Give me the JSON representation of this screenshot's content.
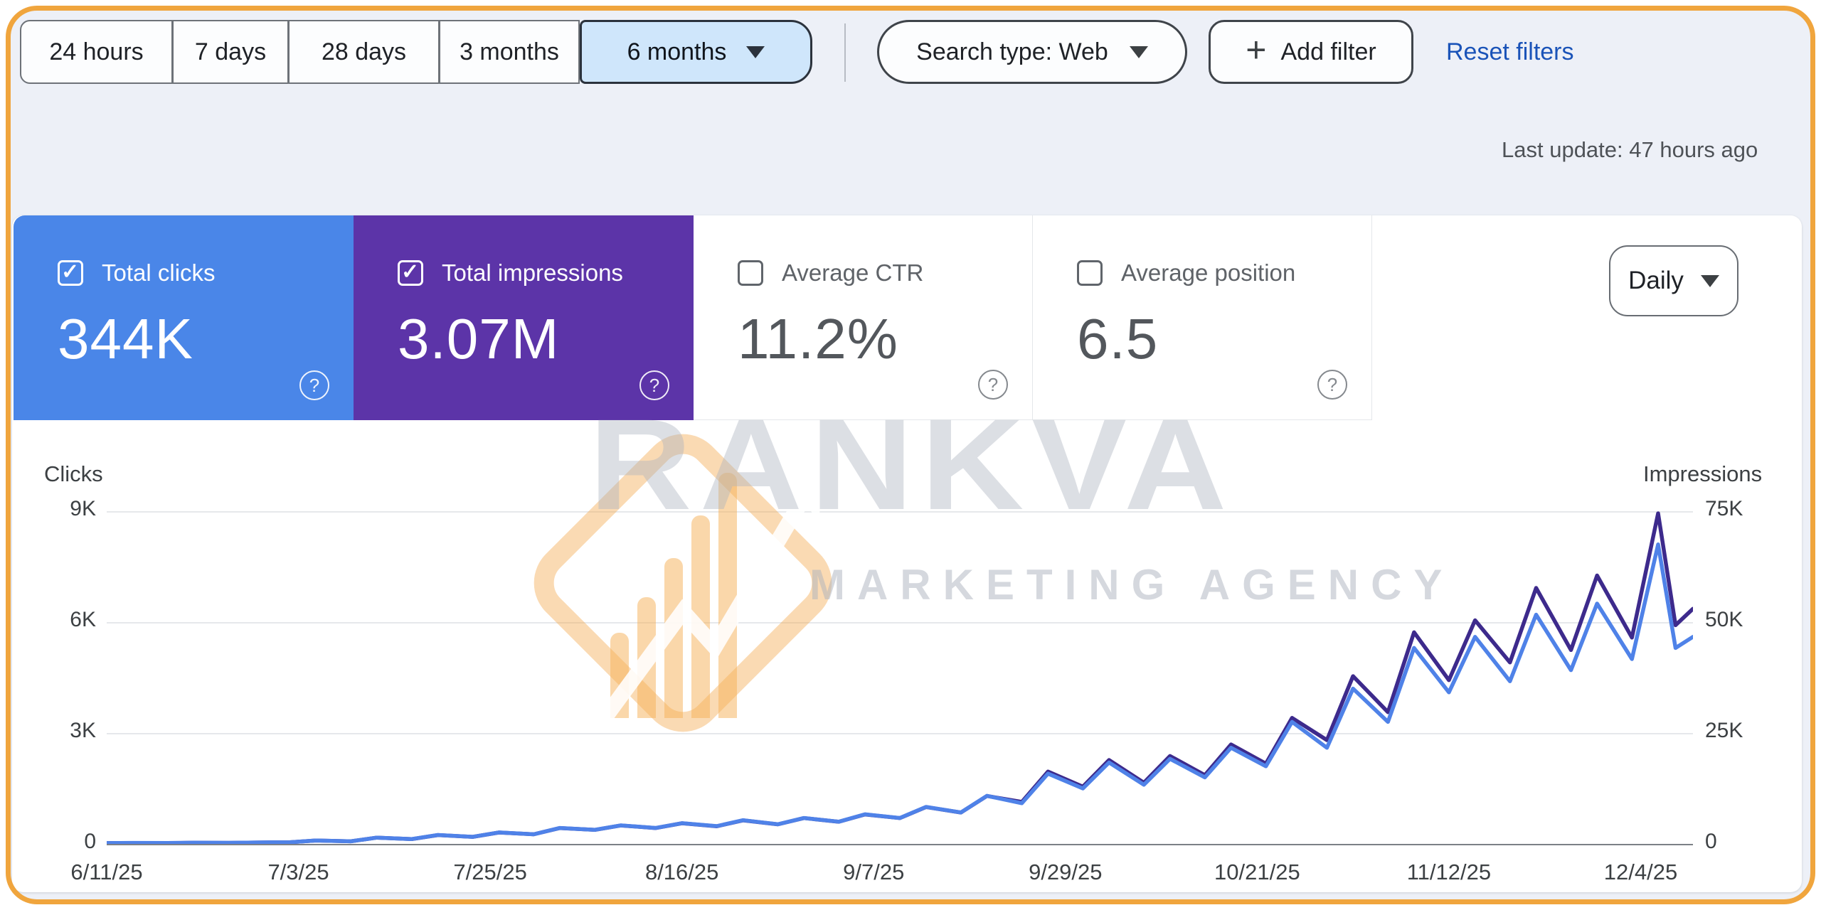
{
  "toolbar": {
    "date_ranges": [
      {
        "label": "24 hours",
        "selected": false
      },
      {
        "label": "7 days",
        "selected": false
      },
      {
        "label": "28 days",
        "selected": false
      },
      {
        "label": "3 months",
        "selected": false
      },
      {
        "label": "6 months",
        "selected": true
      }
    ],
    "search_type_label": "Search type: Web",
    "add_filter_label": "Add filter",
    "reset_filters_label": "Reset filters"
  },
  "status": {
    "last_update": "Last update: 47 hours ago"
  },
  "metric_cards": [
    {
      "label": "Total clicks",
      "value": "344K",
      "checked": true,
      "bg": "#4a86e8"
    },
    {
      "label": "Total impressions",
      "value": "3.07M",
      "checked": true,
      "bg": "#5c34a8"
    },
    {
      "label": "Average CTR",
      "value": "11.2%",
      "checked": false,
      "bg": "#ffffff"
    },
    {
      "label": "Average position",
      "value": "6.5",
      "checked": false,
      "bg": "#ffffff"
    }
  ],
  "granularity_label": "Daily",
  "watermark": {
    "brand": "RANKVA",
    "subtitle": "MARKETING AGENCY"
  },
  "chart_data": {
    "type": "line",
    "grid": true,
    "legend_position": "none",
    "left_axis": {
      "title": "Clicks",
      "ticks": [
        "9K",
        "6K",
        "3K",
        "0"
      ],
      "max": 9000
    },
    "right_axis": {
      "title": "Impressions",
      "ticks": [
        "75K",
        "50K",
        "25K",
        "0"
      ],
      "max": 75000
    },
    "x_axis": {
      "tick_labels": [
        "6/11/25",
        "7/3/25",
        "7/25/25",
        "8/16/25",
        "9/7/25",
        "9/29/25",
        "10/21/25",
        "11/12/25",
        "12/4/25"
      ],
      "tick_days": [
        0,
        22,
        44,
        66,
        88,
        110,
        132,
        154,
        176
      ],
      "total_days": 182
    },
    "days": [
      0,
      3,
      7,
      10,
      14,
      17,
      21,
      24,
      28,
      31,
      35,
      38,
      42,
      45,
      49,
      52,
      56,
      59,
      63,
      66,
      70,
      73,
      77,
      80,
      84,
      87,
      91,
      94,
      98,
      101,
      105,
      108,
      112,
      115,
      119,
      122,
      126,
      129,
      133,
      136,
      140,
      143,
      147,
      150,
      154,
      157,
      161,
      164,
      168,
      171,
      175,
      178,
      180,
      182
    ],
    "series": [
      {
        "name": "Impressions",
        "axis": "right",
        "color": "#3d2a8c",
        "values": [
          183,
          216,
          199,
          249,
          232,
          299,
          374,
          747,
          581,
          1410,
          1080,
          1990,
          1580,
          2570,
          2160,
          3570,
          3150,
          4150,
          3570,
          4650,
          3980,
          5310,
          4400,
          5810,
          4980,
          6640,
          5810,
          8300,
          7060,
          10800,
          9460,
          16300,
          12900,
          18900,
          13800,
          19800,
          15500,
          22400,
          18100,
          28400,
          23400,
          37800,
          29700,
          47700,
          36900,
          50400,
          40900,
          57700,
          43700,
          60500,
          46500,
          74500,
          49300,
          53000
        ]
      },
      {
        "name": "Clicks",
        "axis": "left",
        "color": "#4f82e8",
        "values": [
          22,
          26,
          24,
          30,
          28,
          36,
          45,
          90,
          70,
          170,
          130,
          240,
          190,
          310,
          260,
          430,
          380,
          500,
          430,
          560,
          480,
          640,
          530,
          700,
          600,
          800,
          700,
          1000,
          850,
          1300,
          1100,
          1900,
          1500,
          2200,
          1600,
          2300,
          1800,
          2600,
          2100,
          3300,
          2600,
          4200,
          3300,
          5300,
          4100,
          5600,
          4400,
          6200,
          4700,
          6500,
          5000,
          8100,
          5300,
          5600
        ]
      }
    ]
  }
}
